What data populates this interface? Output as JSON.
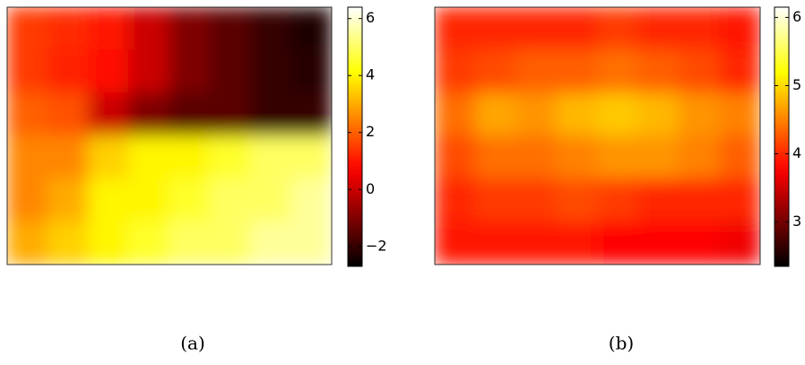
{
  "chart_data": [
    {
      "type": "heatmap",
      "caption": "(a)",
      "colormap": "hot",
      "values": [
        [
          1.5,
          1.3,
          1.0,
          0.0,
          -1.0,
          -1.5,
          -2.0,
          -2.3
        ],
        [
          1.5,
          1.2,
          0.8,
          0.0,
          -1.0,
          -1.5,
          -2.0,
          -2.2
        ],
        [
          2.0,
          1.8,
          0.0,
          -1.0,
          -1.5,
          -1.5,
          -2.0,
          -2.0
        ],
        [
          2.5,
          2.5,
          3.5,
          4.0,
          4.0,
          4.5,
          5.0,
          5.0
        ],
        [
          2.5,
          3.0,
          4.0,
          4.0,
          4.5,
          5.0,
          5.0,
          5.5
        ],
        [
          3.0,
          3.5,
          4.0,
          4.5,
          5.0,
          5.0,
          5.5,
          5.5
        ]
      ],
      "zlim": [
        -2.7,
        6.4
      ],
      "zticks": [
        {
          "value": -2,
          "label": "−2"
        },
        0,
        2,
        4,
        6
      ]
    },
    {
      "type": "heatmap",
      "caption": "(b)",
      "colormap": "hot",
      "values": [
        [
          4.0,
          4.0,
          4.0,
          4.0,
          4.1,
          4.0,
          4.0,
          3.9
        ],
        [
          4.1,
          4.2,
          4.3,
          4.3,
          4.4,
          4.3,
          4.2,
          4.0
        ],
        [
          4.4,
          4.7,
          4.6,
          4.8,
          4.9,
          4.8,
          4.6,
          4.5
        ],
        [
          4.2,
          4.4,
          4.4,
          4.5,
          4.6,
          4.6,
          4.5,
          4.3
        ],
        [
          4.0,
          4.1,
          4.1,
          4.2,
          4.1,
          4.0,
          4.0,
          4.0
        ],
        [
          3.9,
          3.9,
          3.9,
          3.9,
          3.8,
          3.8,
          3.8,
          3.7
        ]
      ],
      "zlim": [
        2.35,
        6.15
      ],
      "zticks": [
        3,
        4,
        5,
        6
      ]
    }
  ]
}
